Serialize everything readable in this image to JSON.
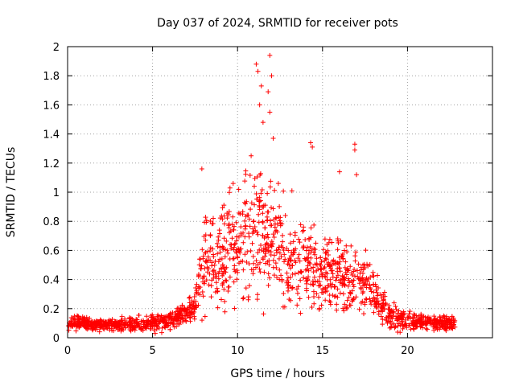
{
  "chart_data": {
    "type": "scatter",
    "title": "Day 037 of 2024, SRMTID for receiver pots",
    "xlabel": "GPS time / hours",
    "ylabel": "SRMTID / TECUs",
    "xlim": [
      0,
      25
    ],
    "ylim": [
      0,
      2
    ],
    "xticks": [
      0,
      5,
      10,
      15,
      20
    ],
    "yticks": [
      0,
      0.2,
      0.4,
      0.6,
      0.8,
      1,
      1.2,
      1.4,
      1.6,
      1.8,
      2
    ],
    "grid": true,
    "marker": "+",
    "color": "#ff0000",
    "x_end": 22.8,
    "envelope": {
      "hours": [
        0,
        1,
        2,
        3,
        4,
        5,
        6,
        7,
        7.5,
        8,
        9,
        10,
        11,
        12,
        13,
        14,
        15,
        16,
        17,
        18,
        19,
        20,
        21,
        22,
        22.8
      ],
      "typical": [
        0.1,
        0.1,
        0.09,
        0.09,
        0.09,
        0.1,
        0.12,
        0.17,
        0.22,
        0.5,
        0.55,
        0.65,
        0.7,
        0.7,
        0.5,
        0.5,
        0.45,
        0.45,
        0.4,
        0.3,
        0.15,
        0.12,
        0.11,
        0.1,
        0.1
      ],
      "spread": [
        0.04,
        0.04,
        0.03,
        0.04,
        0.04,
        0.05,
        0.05,
        0.06,
        0.1,
        0.25,
        0.3,
        0.35,
        0.4,
        0.35,
        0.25,
        0.25,
        0.2,
        0.2,
        0.18,
        0.15,
        0.08,
        0.05,
        0.04,
        0.04,
        0.04
      ]
    },
    "peaks": [
      {
        "x": 7.9,
        "y": 1.16
      },
      {
        "x": 10.8,
        "y": 1.25
      },
      {
        "x": 11.1,
        "y": 1.88
      },
      {
        "x": 11.2,
        "y": 1.83
      },
      {
        "x": 11.4,
        "y": 1.73
      },
      {
        "x": 11.8,
        "y": 1.69
      },
      {
        "x": 11.9,
        "y": 1.94
      },
      {
        "x": 12.0,
        "y": 1.8
      },
      {
        "x": 11.9,
        "y": 1.55
      },
      {
        "x": 12.1,
        "y": 1.37
      },
      {
        "x": 11.5,
        "y": 1.48
      },
      {
        "x": 11.3,
        "y": 1.6
      },
      {
        "x": 14.3,
        "y": 1.34
      },
      {
        "x": 14.4,
        "y": 1.31
      },
      {
        "x": 16.0,
        "y": 1.14
      },
      {
        "x": 16.9,
        "y": 1.33
      },
      {
        "x": 16.9,
        "y": 1.29
      },
      {
        "x": 17.0,
        "y": 1.12
      },
      {
        "x": 12.4,
        "y": 1.06
      },
      {
        "x": 13.2,
        "y": 1.01
      }
    ]
  }
}
